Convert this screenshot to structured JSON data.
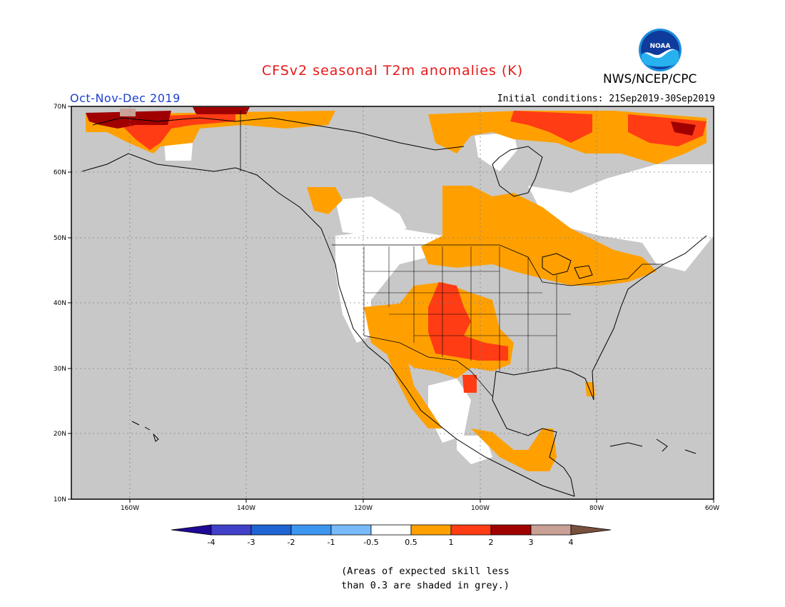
{
  "header": {
    "title": "CFSv2 seasonal T2m anomalies (K)",
    "season": "Oct-Nov-Dec 2019",
    "initial_conditions": "Initial conditions: 21Sep2019-30Sep2019",
    "agency": "NWS/NCEP/CPC",
    "logo_text": "NOAA"
  },
  "map": {
    "lon_range": [
      -170,
      -60
    ],
    "lat_range": [
      10,
      70
    ],
    "lat_ticks": [
      "70N",
      "60N",
      "50N",
      "40N",
      "30N",
      "20N",
      "10N"
    ],
    "lon_ticks": [
      "160W",
      "140W",
      "120W",
      "100W",
      "80W",
      "60W"
    ],
    "masked_color": "#c8c8c8"
  },
  "legend": {
    "labels": [
      "-4",
      "-3",
      "-2",
      "-1",
      "-0.5",
      "0.5",
      "1",
      "2",
      "3",
      "4"
    ],
    "colors": [
      "#1e0a96",
      "#4040c8",
      "#1e64d2",
      "#3c96f0",
      "#78b9fa",
      "#ffffff",
      "#ffa000",
      "#ff3c14",
      "#a00000",
      "#c8a096",
      "#78503c"
    ]
  },
  "footnote": {
    "line1": "(Areas of expected skill less",
    "line2": "than 0.3 are shaded in grey.)"
  }
}
